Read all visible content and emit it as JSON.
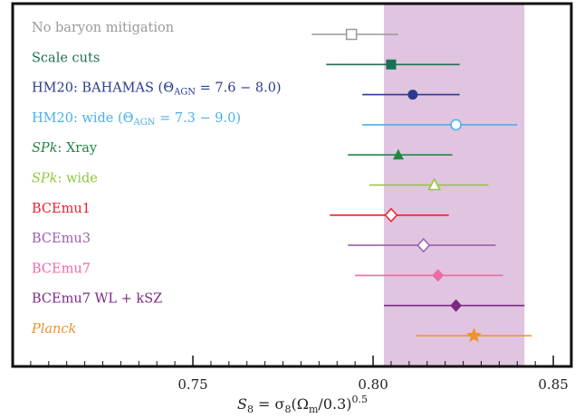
{
  "chart_data": {
    "type": "forest",
    "xlabel": "S₈ = σ₈(Ωm/0.3)^0.5",
    "xlabel_parts": {
      "main": "S",
      "sub8": "8",
      "eq": " = σ",
      "sub8b": "8",
      "paren_open": "(Ω",
      "subm": "m",
      "rest": "/0.3)",
      "sup": "0.5"
    },
    "xlim": [
      0.7,
      0.855
    ],
    "xticks": [
      0.75,
      0.8,
      0.85
    ],
    "xtick_labels": [
      "0.75",
      "0.80",
      "0.85"
    ],
    "shaded_band": {
      "xmin": 0.803,
      "xmax": 0.842,
      "color": "#e0c4e0"
    },
    "grid": false,
    "series": [
      {
        "label": "No baryon mitigation",
        "center": 0.794,
        "low": 0.783,
        "high": 0.807,
        "marker": "open-square",
        "color": "#999999"
      },
      {
        "label": "Scale cuts",
        "center": 0.805,
        "low": 0.787,
        "high": 0.824,
        "marker": "filled-square",
        "color": "#1b7050"
      },
      {
        "label": "HM20: BAHAMAS (ΘAGN = 7.6 − 8.0)",
        "center": 0.811,
        "low": 0.797,
        "high": 0.824,
        "marker": "filled-circle",
        "color": "#2b3a8f"
      },
      {
        "label": "HM20: wide (ΘAGN = 7.3 − 9.0)",
        "center": 0.823,
        "low": 0.797,
        "high": 0.84,
        "marker": "open-circle",
        "color": "#4ab0e8"
      },
      {
        "label": "SPk: Xray",
        "center": 0.807,
        "low": 0.793,
        "high": 0.822,
        "marker": "filled-triangle",
        "color": "#228844"
      },
      {
        "label": "SPk: wide",
        "center": 0.817,
        "low": 0.799,
        "high": 0.832,
        "marker": "open-triangle",
        "color": "#8ec63f"
      },
      {
        "label": "BCEmu1",
        "center": 0.805,
        "low": 0.788,
        "high": 0.821,
        "marker": "open-diamond",
        "color": "#e8202a"
      },
      {
        "label": "BCEmu3",
        "center": 0.814,
        "low": 0.793,
        "high": 0.834,
        "marker": "open-diamond",
        "color": "#9b5fb0"
      },
      {
        "label": "BCEmu7",
        "center": 0.818,
        "low": 0.795,
        "high": 0.836,
        "marker": "filled-diamond",
        "color": "#ee6aa7"
      },
      {
        "label": "BCEmu7 WL + kSZ",
        "center": 0.823,
        "low": 0.803,
        "high": 0.842,
        "marker": "filled-diamond",
        "color": "#7a2a82"
      },
      {
        "label": "Planck",
        "center": 0.828,
        "low": 0.812,
        "high": 0.844,
        "marker": "filled-star",
        "color": "#f0922b"
      }
    ]
  }
}
